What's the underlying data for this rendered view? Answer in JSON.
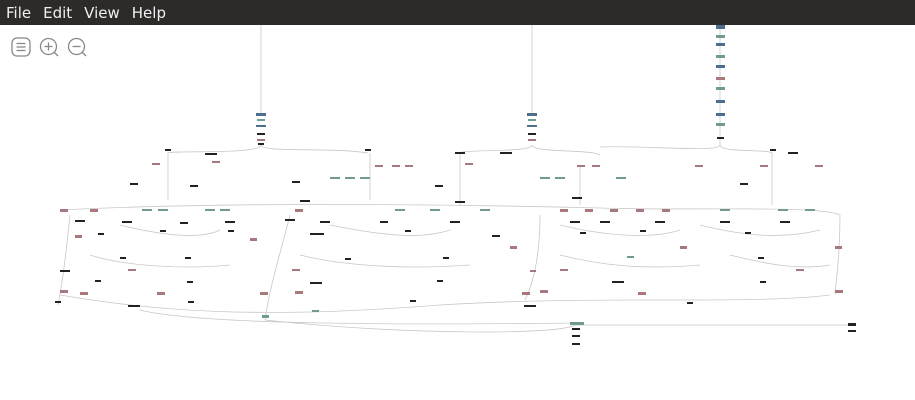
{
  "menu": {
    "items": [
      "File",
      "Edit",
      "View",
      "Help"
    ]
  }
}
